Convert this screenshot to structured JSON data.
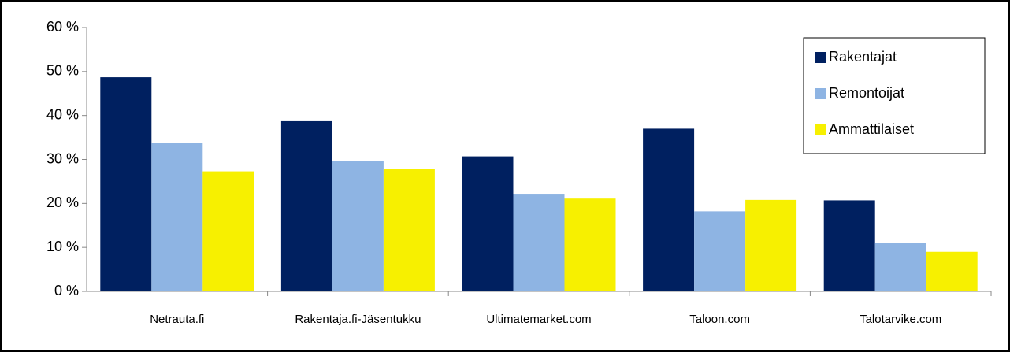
{
  "chart_data": {
    "type": "bar",
    "categories": [
      "Netrauta.fi",
      "Rakentaja.fi-Jäsentukku",
      "Ultimatemarket.com",
      "Taloon.com",
      "Talotarvike.com"
    ],
    "series": [
      {
        "name": "Rakentajat",
        "color": "#002060",
        "values": [
          48.7,
          38.7,
          30.7,
          37.0,
          20.7
        ]
      },
      {
        "name": "Remontoijat",
        "color": "#8eb4e3",
        "values": [
          33.7,
          29.6,
          22.2,
          18.2,
          11.0
        ]
      },
      {
        "name": "Ammattilaiset",
        "color": "#f7f000",
        "values": [
          27.3,
          27.9,
          21.1,
          20.8,
          9.0
        ]
      }
    ],
    "ylim": [
      0,
      60
    ],
    "yticks": [
      {
        "value": 0,
        "label": "0 %"
      },
      {
        "value": 10,
        "label": "10 %"
      },
      {
        "value": 20,
        "label": "20 %"
      },
      {
        "value": 30,
        "label": "30 %"
      },
      {
        "value": 40,
        "label": "40 %"
      },
      {
        "value": 50,
        "label": "50 %"
      },
      {
        "value": 60,
        "label": "60 %"
      }
    ],
    "grid": false,
    "legend": "upper right"
  }
}
